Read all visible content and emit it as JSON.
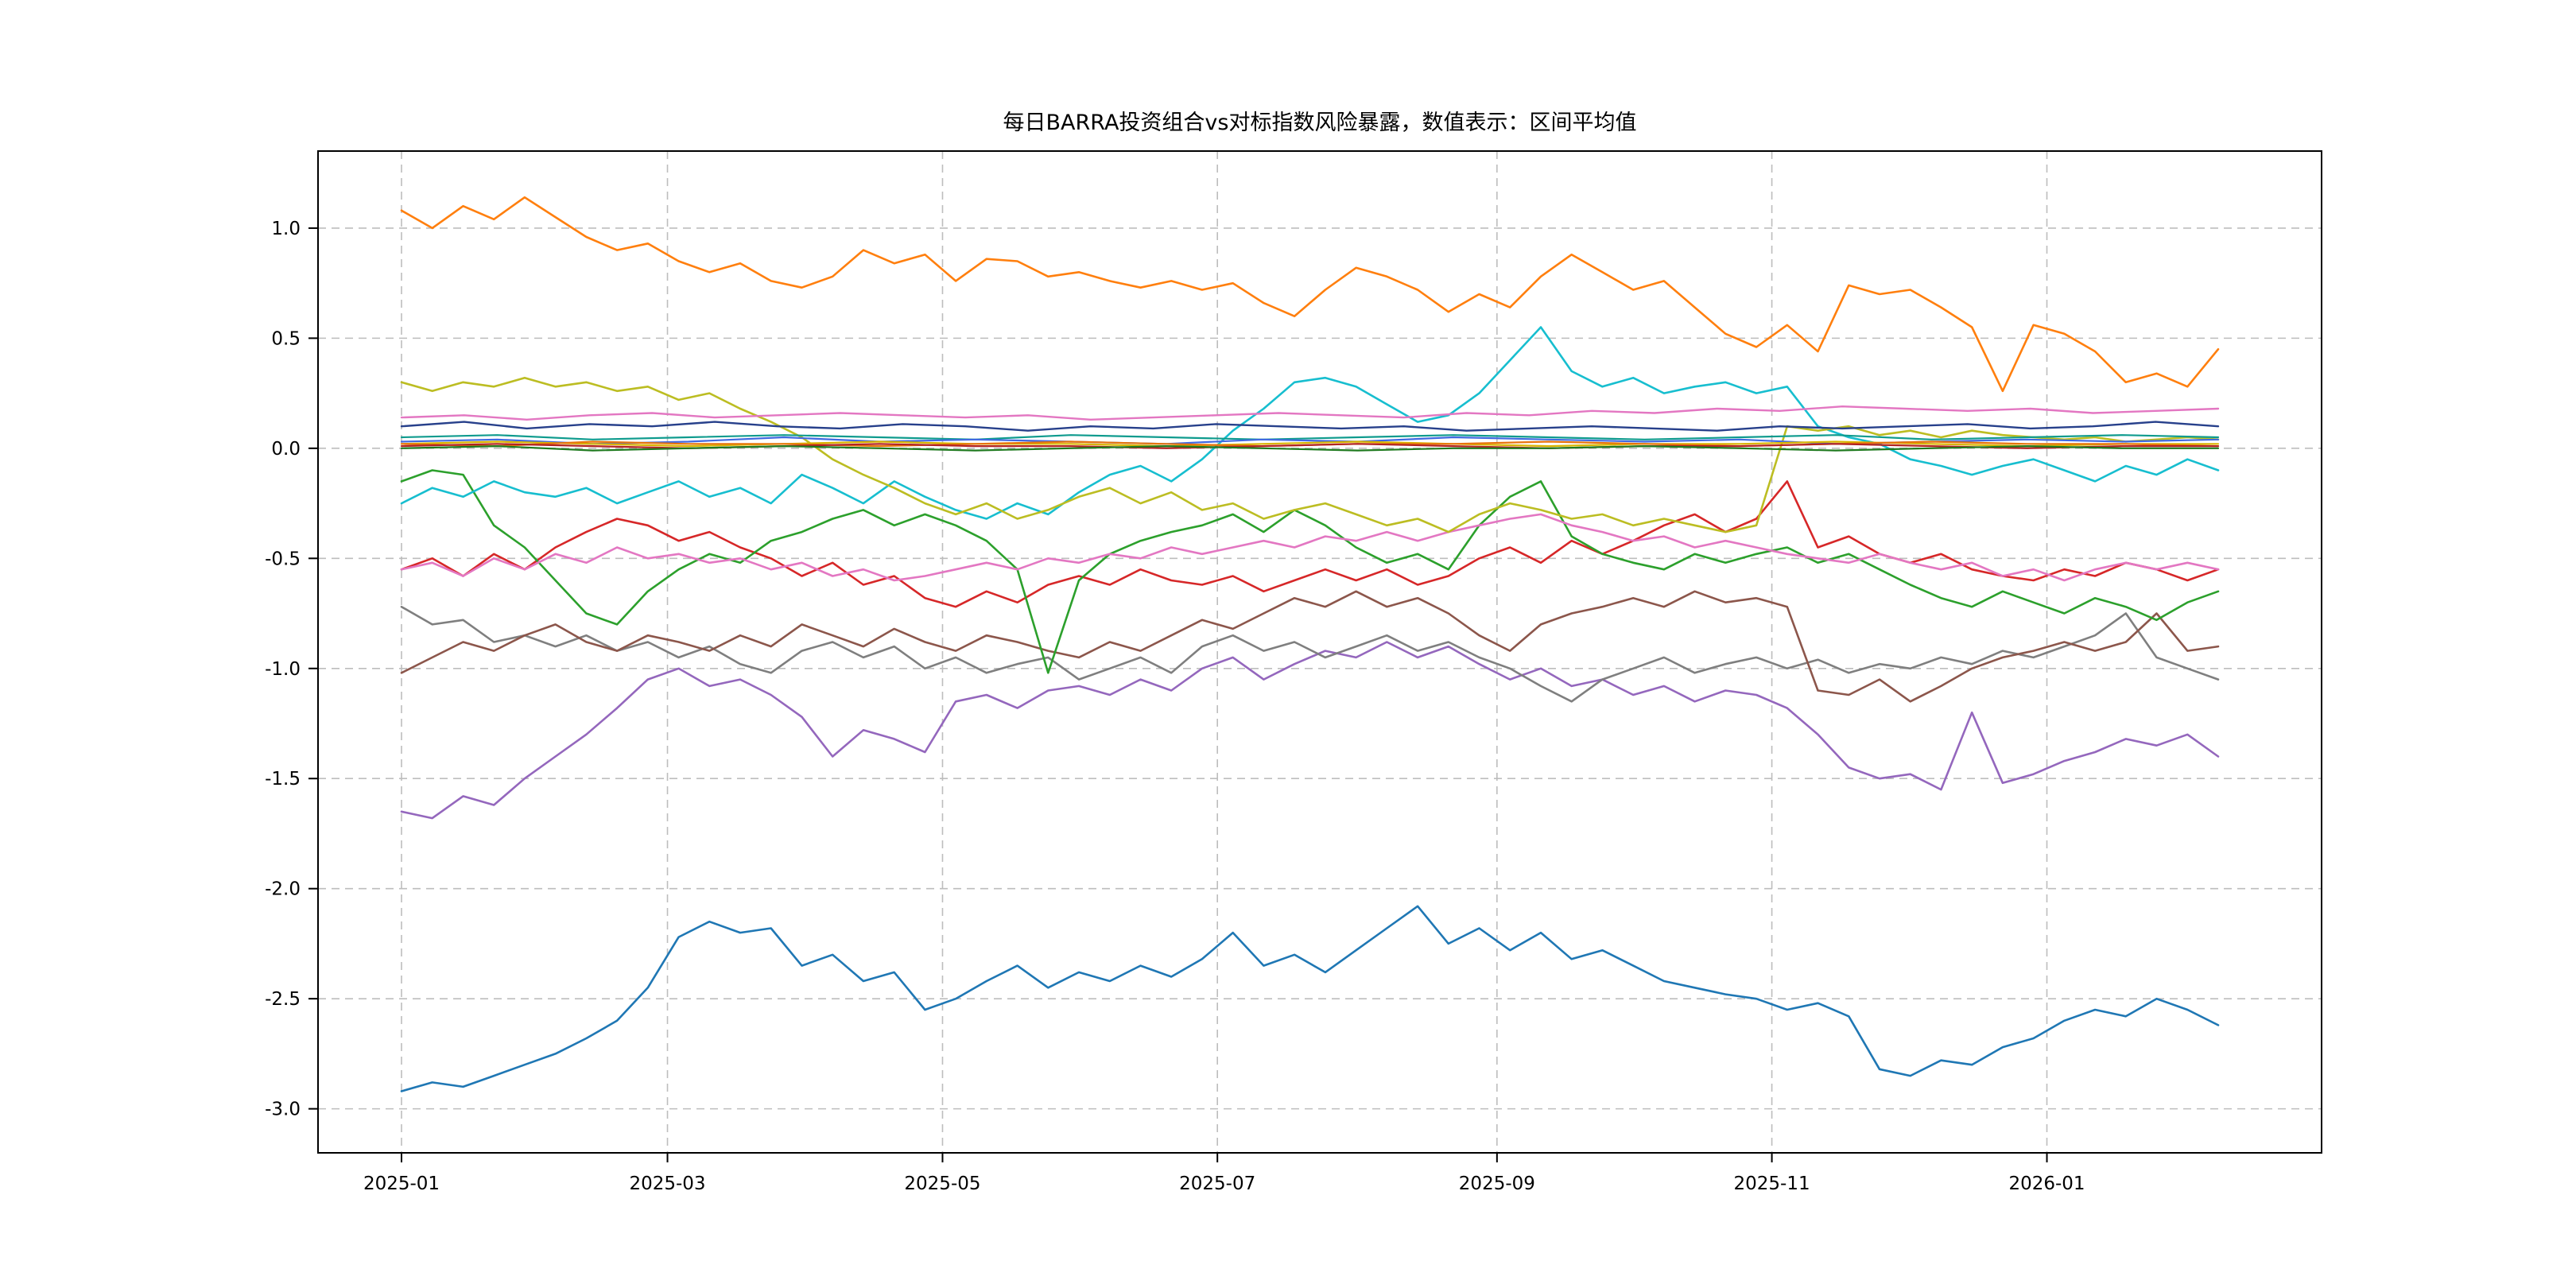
{
  "chart_data": {
    "type": "line",
    "title": "每日BARRA投资组合vs对标指数风险暴露，数值表示：区间平均值",
    "xlabel": "",
    "ylabel": "",
    "grid": true,
    "legend_position": "none",
    "ylim": [
      -3.2,
      1.35
    ],
    "y_ticks": [
      1.0,
      0.5,
      0.0,
      -0.5,
      -1.0,
      -1.5,
      -2.0,
      -2.5,
      -3.0
    ],
    "x_ticks": [
      {
        "label": "2025-01",
        "t": 0.0
      },
      {
        "label": "2025-03",
        "t": 0.1464
      },
      {
        "label": "2025-05",
        "t": 0.2978
      },
      {
        "label": "2025-07",
        "t": 0.4491
      },
      {
        "label": "2025-09",
        "t": 0.603
      },
      {
        "label": "2025-11",
        "t": 0.7543
      },
      {
        "label": "2026-01",
        "t": 0.9057
      }
    ],
    "x_range": [
      "2025-01",
      "2026-02"
    ],
    "series": [
      {
        "name": "orange",
        "color": "#ff7f0e",
        "width": 2.6,
        "values": [
          1.08,
          1.0,
          1.1,
          1.04,
          1.14,
          1.05,
          0.96,
          0.9,
          0.93,
          0.85,
          0.8,
          0.84,
          0.76,
          0.73,
          0.78,
          0.9,
          0.84,
          0.88,
          0.76,
          0.86,
          0.85,
          0.78,
          0.8,
          0.76,
          0.73,
          0.76,
          0.72,
          0.75,
          0.66,
          0.6,
          0.72,
          0.82,
          0.78,
          0.72,
          0.62,
          0.7,
          0.64,
          0.78,
          0.88,
          0.8,
          0.72,
          0.76,
          0.64,
          0.52,
          0.46,
          0.56,
          0.44,
          0.74,
          0.7,
          0.72,
          0.64,
          0.55,
          0.26,
          0.56,
          0.52,
          0.44,
          0.3,
          0.34,
          0.28,
          0.45
        ]
      },
      {
        "name": "steelblue",
        "color": "#1f77b4",
        "width": 2.6,
        "values": [
          -2.92,
          -2.88,
          -2.9,
          -2.85,
          -2.8,
          -2.75,
          -2.68,
          -2.6,
          -2.45,
          -2.22,
          -2.15,
          -2.2,
          -2.18,
          -2.35,
          -2.3,
          -2.42,
          -2.38,
          -2.55,
          -2.5,
          -2.42,
          -2.35,
          -2.45,
          -2.38,
          -2.42,
          -2.35,
          -2.4,
          -2.32,
          -2.2,
          -2.35,
          -2.3,
          -2.38,
          -2.28,
          -2.18,
          -2.08,
          -2.25,
          -2.18,
          -2.28,
          -2.2,
          -2.32,
          -2.28,
          -2.35,
          -2.42,
          -2.45,
          -2.48,
          -2.5,
          -2.55,
          -2.52,
          -2.58,
          -2.82,
          -2.85,
          -2.78,
          -2.8,
          -2.72,
          -2.68,
          -2.6,
          -2.55,
          -2.58,
          -2.5,
          -2.55,
          -2.62
        ]
      },
      {
        "name": "purple",
        "color": "#9467bd",
        "width": 2.6,
        "values": [
          -1.65,
          -1.68,
          -1.58,
          -1.62,
          -1.5,
          -1.4,
          -1.3,
          -1.18,
          -1.05,
          -1.0,
          -1.08,
          -1.05,
          -1.12,
          -1.22,
          -1.4,
          -1.28,
          -1.32,
          -1.38,
          -1.15,
          -1.12,
          -1.18,
          -1.1,
          -1.08,
          -1.12,
          -1.05,
          -1.1,
          -1.0,
          -0.95,
          -1.05,
          -0.98,
          -0.92,
          -0.95,
          -0.88,
          -0.95,
          -0.9,
          -0.98,
          -1.05,
          -1.0,
          -1.08,
          -1.05,
          -1.12,
          -1.08,
          -1.15,
          -1.1,
          -1.12,
          -1.18,
          -1.3,
          -1.45,
          -1.5,
          -1.48,
          -1.55,
          -1.2,
          -1.52,
          -1.48,
          -1.42,
          -1.38,
          -1.32,
          -1.35,
          -1.3,
          -1.4
        ]
      },
      {
        "name": "gray",
        "color": "#7f7f7f",
        "width": 2.6,
        "values": [
          -0.72,
          -0.8,
          -0.78,
          -0.88,
          -0.85,
          -0.9,
          -0.85,
          -0.92,
          -0.88,
          -0.95,
          -0.9,
          -0.98,
          -1.02,
          -0.92,
          -0.88,
          -0.95,
          -0.9,
          -1.0,
          -0.95,
          -1.02,
          -0.98,
          -0.95,
          -1.05,
          -1.0,
          -0.95,
          -1.02,
          -0.9,
          -0.85,
          -0.92,
          -0.88,
          -0.95,
          -0.9,
          -0.85,
          -0.92,
          -0.88,
          -0.95,
          -1.0,
          -1.08,
          -1.15,
          -1.05,
          -1.0,
          -0.95,
          -1.02,
          -0.98,
          -0.95,
          -1.0,
          -0.96,
          -1.02,
          -0.98,
          -1.0,
          -0.95,
          -0.98,
          -0.92,
          -0.95,
          -0.9,
          -0.85,
          -0.75,
          -0.95,
          -1.0,
          -1.05
        ]
      },
      {
        "name": "brown",
        "color": "#8c564b",
        "width": 2.6,
        "values": [
          -1.02,
          -0.95,
          -0.88,
          -0.92,
          -0.85,
          -0.8,
          -0.88,
          -0.92,
          -0.85,
          -0.88,
          -0.92,
          -0.85,
          -0.9,
          -0.8,
          -0.85,
          -0.9,
          -0.82,
          -0.88,
          -0.92,
          -0.85,
          -0.88,
          -0.92,
          -0.95,
          -0.88,
          -0.92,
          -0.85,
          -0.78,
          -0.82,
          -0.75,
          -0.68,
          -0.72,
          -0.65,
          -0.72,
          -0.68,
          -0.75,
          -0.85,
          -0.92,
          -0.8,
          -0.75,
          -0.72,
          -0.68,
          -0.72,
          -0.65,
          -0.7,
          -0.68,
          -0.72,
          -1.1,
          -1.12,
          -1.05,
          -1.15,
          -1.08,
          -1.0,
          -0.95,
          -0.92,
          -0.88,
          -0.92,
          -0.88,
          -0.75,
          -0.92,
          -0.9
        ]
      },
      {
        "name": "red",
        "color": "#d62728",
        "width": 2.6,
        "values": [
          -0.55,
          -0.5,
          -0.58,
          -0.48,
          -0.55,
          -0.45,
          -0.38,
          -0.32,
          -0.35,
          -0.42,
          -0.38,
          -0.45,
          -0.5,
          -0.58,
          -0.52,
          -0.62,
          -0.58,
          -0.68,
          -0.72,
          -0.65,
          -0.7,
          -0.62,
          -0.58,
          -0.62,
          -0.55,
          -0.6,
          -0.62,
          -0.58,
          -0.65,
          -0.6,
          -0.55,
          -0.6,
          -0.55,
          -0.62,
          -0.58,
          -0.5,
          -0.45,
          -0.52,
          -0.42,
          -0.48,
          -0.42,
          -0.35,
          -0.3,
          -0.38,
          -0.32,
          -0.15,
          -0.45,
          -0.4,
          -0.48,
          -0.52,
          -0.48,
          -0.55,
          -0.58,
          -0.6,
          -0.55,
          -0.58,
          -0.52,
          -0.55,
          -0.6,
          -0.55
        ]
      },
      {
        "name": "green",
        "color": "#2ca02c",
        "width": 2.6,
        "values": [
          -0.15,
          -0.1,
          -0.12,
          -0.35,
          -0.45,
          -0.6,
          -0.75,
          -0.8,
          -0.65,
          -0.55,
          -0.48,
          -0.52,
          -0.42,
          -0.38,
          -0.32,
          -0.28,
          -0.35,
          -0.3,
          -0.35,
          -0.42,
          -0.55,
          -1.02,
          -0.6,
          -0.48,
          -0.42,
          -0.38,
          -0.35,
          -0.3,
          -0.38,
          -0.28,
          -0.35,
          -0.45,
          -0.52,
          -0.48,
          -0.55,
          -0.35,
          -0.22,
          -0.15,
          -0.4,
          -0.48,
          -0.52,
          -0.55,
          -0.48,
          -0.52,
          -0.48,
          -0.45,
          -0.52,
          -0.48,
          -0.55,
          -0.62,
          -0.68,
          -0.72,
          -0.65,
          -0.7,
          -0.75,
          -0.68,
          -0.72,
          -0.78,
          -0.7,
          -0.65
        ]
      },
      {
        "name": "pink-lower",
        "color": "#e377c2",
        "width": 2.6,
        "values": [
          -0.55,
          -0.52,
          -0.58,
          -0.5,
          -0.55,
          -0.48,
          -0.52,
          -0.45,
          -0.5,
          -0.48,
          -0.52,
          -0.5,
          -0.55,
          -0.52,
          -0.58,
          -0.55,
          -0.6,
          -0.58,
          -0.55,
          -0.52,
          -0.55,
          -0.5,
          -0.52,
          -0.48,
          -0.5,
          -0.45,
          -0.48,
          -0.45,
          -0.42,
          -0.45,
          -0.4,
          -0.42,
          -0.38,
          -0.42,
          -0.38,
          -0.35,
          -0.32,
          -0.3,
          -0.35,
          -0.38,
          -0.42,
          -0.4,
          -0.45,
          -0.42,
          -0.45,
          -0.48,
          -0.5,
          -0.52,
          -0.48,
          -0.52,
          -0.55,
          -0.52,
          -0.58,
          -0.55,
          -0.6,
          -0.55,
          -0.52,
          -0.55,
          -0.52,
          -0.55
        ]
      },
      {
        "name": "cyan",
        "color": "#17becf",
        "width": 2.6,
        "values": [
          -0.25,
          -0.18,
          -0.22,
          -0.15,
          -0.2,
          -0.22,
          -0.18,
          -0.25,
          -0.2,
          -0.15,
          -0.22,
          -0.18,
          -0.25,
          -0.12,
          -0.18,
          -0.25,
          -0.15,
          -0.22,
          -0.28,
          -0.32,
          -0.25,
          -0.3,
          -0.2,
          -0.12,
          -0.08,
          -0.15,
          -0.05,
          0.08,
          0.18,
          0.3,
          0.32,
          0.28,
          0.2,
          0.12,
          0.15,
          0.25,
          0.4,
          0.55,
          0.35,
          0.28,
          0.32,
          0.25,
          0.28,
          0.3,
          0.25,
          0.28,
          0.1,
          0.05,
          0.02,
          -0.05,
          -0.08,
          -0.12,
          -0.08,
          -0.05,
          -0.1,
          -0.15,
          -0.08,
          -0.12,
          -0.05,
          -0.1
        ]
      },
      {
        "name": "yellow-green",
        "color": "#bcbd22",
        "width": 2.6,
        "values": [
          0.3,
          0.26,
          0.3,
          0.28,
          0.32,
          0.28,
          0.3,
          0.26,
          0.28,
          0.22,
          0.25,
          0.18,
          0.12,
          0.05,
          -0.05,
          -0.12,
          -0.18,
          -0.25,
          -0.3,
          -0.25,
          -0.32,
          -0.28,
          -0.22,
          -0.18,
          -0.25,
          -0.2,
          -0.28,
          -0.25,
          -0.32,
          -0.28,
          -0.25,
          -0.3,
          -0.35,
          -0.32,
          -0.38,
          -0.3,
          -0.25,
          -0.28,
          -0.32,
          -0.3,
          -0.35,
          -0.32,
          -0.35,
          -0.38,
          -0.35,
          0.1,
          0.08,
          0.1,
          0.06,
          0.08,
          0.05,
          0.08,
          0.06,
          0.05,
          0.04,
          0.05,
          0.03,
          0.04,
          0.05,
          0.04
        ]
      },
      {
        "name": "pink-upper",
        "color": "#e377c2",
        "width": 2.4,
        "values": [
          0.14,
          0.15,
          0.13,
          0.15,
          0.16,
          0.14,
          0.15,
          0.16,
          0.15,
          0.14,
          0.15,
          0.13,
          0.14,
          0.15,
          0.16,
          0.15,
          0.14,
          0.16,
          0.15,
          0.17,
          0.16,
          0.18,
          0.17,
          0.19,
          0.18,
          0.17,
          0.18,
          0.16,
          0.17,
          0.18
        ]
      },
      {
        "name": "navy",
        "color": "#27408b",
        "width": 2.4,
        "values": [
          0.1,
          0.12,
          0.09,
          0.11,
          0.1,
          0.12,
          0.1,
          0.09,
          0.11,
          0.1,
          0.08,
          0.1,
          0.09,
          0.11,
          0.1,
          0.09,
          0.1,
          0.08,
          0.09,
          0.1,
          0.09,
          0.08,
          0.1,
          0.09,
          0.1,
          0.11,
          0.09,
          0.1,
          0.12,
          0.1
        ]
      },
      {
        "name": "teal",
        "color": "#0f9b8e",
        "width": 2.2,
        "values": [
          0.05,
          0.06,
          0.04,
          0.05,
          0.06,
          0.05,
          0.04,
          0.06,
          0.05,
          0.04,
          0.05,
          0.06,
          0.05,
          0.04,
          0.05,
          0.06,
          0.04,
          0.05,
          0.06,
          0.05
        ]
      },
      {
        "name": "royal-blue",
        "color": "#4169e1",
        "width": 2.2,
        "values": [
          0.03,
          0.04,
          0.02,
          0.03,
          0.05,
          0.03,
          0.04,
          0.03,
          0.02,
          0.04,
          0.03,
          0.05,
          0.04,
          0.03,
          0.04,
          0.02,
          0.03,
          0.04,
          0.03,
          0.04
        ]
      },
      {
        "name": "gold",
        "color": "#d9b500",
        "width": 2.2,
        "values": [
          0.02,
          0.03,
          0.02,
          0.01,
          0.02,
          0.03,
          0.02,
          0.02,
          0.01,
          0.02,
          0.03,
          0.02,
          0.01,
          0.02,
          0.02,
          0.03,
          0.02,
          0.01,
          0.02,
          0.02
        ]
      },
      {
        "name": "dark-orange",
        "color": "#e8740c",
        "width": 2.2,
        "values": [
          0.02,
          0.01,
          0.03,
          0.02,
          0.02,
          0.01,
          0.02,
          0.03,
          0.02,
          0.01,
          0.02,
          0.02,
          0.03,
          0.02,
          0.01,
          0.02,
          0.03,
          0.02,
          0.02,
          0.01
        ]
      },
      {
        "name": "dark-red",
        "color": "#b22222",
        "width": 2.2,
        "values": [
          0.01,
          0.02,
          0.01,
          0.0,
          0.01,
          0.02,
          0.01,
          0.01,
          0.0,
          0.01,
          0.02,
          0.01,
          0.0,
          0.01,
          0.01,
          0.02,
          0.01,
          0.0,
          0.01,
          0.01
        ]
      },
      {
        "name": "dark-green",
        "color": "#1f7a1f",
        "width": 2.2,
        "values": [
          0.0,
          0.01,
          -0.01,
          0.0,
          0.01,
          0.0,
          -0.01,
          0.0,
          0.01,
          0.0,
          -0.01,
          0.0,
          0.0,
          0.01,
          0.0,
          -0.01,
          0.0,
          0.01,
          0.0,
          0.0
        ]
      }
    ],
    "style": {
      "grid_color": "#bdbdbd",
      "grid_dash": "10 7",
      "axis_color": "#000000",
      "background": "#ffffff"
    }
  }
}
